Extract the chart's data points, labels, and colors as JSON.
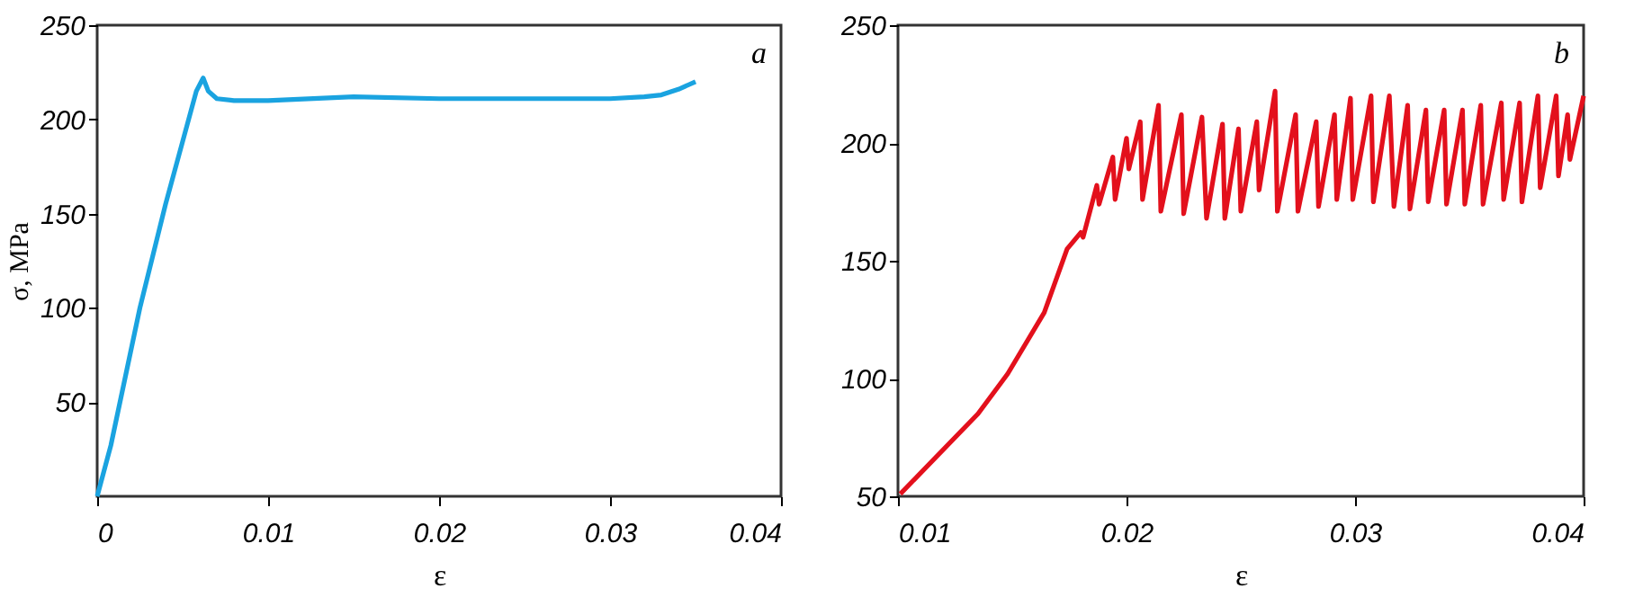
{
  "chart_data": [
    {
      "type": "line",
      "xlabel": "ε",
      "ylabel": "σ, MPa",
      "annotations": [
        "a"
      ],
      "xlim": [
        0,
        0.04
      ],
      "ylim": [
        0,
        250
      ],
      "xticks": [
        {
          "value": 0,
          "label": "0"
        },
        0.01,
        0.02,
        0.03,
        0.04
      ],
      "yticks": [
        50,
        100,
        150,
        200,
        250
      ],
      "grid": false,
      "legend": false,
      "line_style": "solid",
      "series": [
        {
          "color": "#1aa3e0",
          "x": [
            0,
            0.0008,
            0.0025,
            0.004,
            0.0058,
            0.0062,
            0.0065,
            0.007,
            0.008,
            0.01,
            0.015,
            0.02,
            0.025,
            0.03,
            0.032,
            0.033,
            0.034,
            0.035
          ],
          "values": [
            0,
            27,
            100,
            155,
            215,
            222,
            215,
            211,
            210,
            210,
            212,
            211,
            211,
            211,
            212,
            213,
            216,
            220
          ]
        }
      ]
    },
    {
      "type": "line",
      "xlabel": "ε",
      "annotations": [
        "b"
      ],
      "xlim": [
        0.01,
        0.04
      ],
      "ylim": [
        50,
        250
      ],
      "xticks": [
        0.01,
        0.02,
        0.03,
        0.04
      ],
      "yticks": [
        50,
        100,
        150,
        200,
        250
      ],
      "grid": false,
      "legend": false,
      "line_style": "solid",
      "series": [
        {
          "color": "#e3101c",
          "x": [
            0.0101,
            0.0135,
            0.0148,
            0.0164,
            0.0174,
            0.018,
            0.0181,
            0.0187,
            0.0188,
            0.0194,
            0.0195,
            0.02,
            0.0201,
            0.0206,
            0.0207,
            0.0214,
            0.0215,
            0.0224,
            0.0225,
            0.0233,
            0.0235,
            0.0242,
            0.0243,
            0.0249,
            0.025,
            0.0257,
            0.0258,
            0.0265,
            0.0266,
            0.0274,
            0.0275,
            0.0283,
            0.0284,
            0.0291,
            0.0292,
            0.0298,
            0.0299,
            0.0307,
            0.0308,
            0.0315,
            0.0317,
            0.0323,
            0.0324,
            0.0331,
            0.0332,
            0.0339,
            0.034,
            0.0347,
            0.0348,
            0.0355,
            0.0356,
            0.0364,
            0.0365,
            0.0372,
            0.0373,
            0.038,
            0.0381,
            0.0388,
            0.0389,
            0.0393,
            0.0394,
            0.04
          ],
          "values": [
            51,
            85,
            102,
            128,
            155,
            162,
            160,
            182,
            174,
            194,
            176,
            202,
            189,
            209,
            176,
            216,
            171,
            212,
            170,
            211,
            168,
            208,
            168,
            206,
            171,
            209,
            180,
            222,
            171,
            212,
            171,
            209,
            173,
            212,
            176,
            219,
            176,
            220,
            175,
            220,
            173,
            216,
            172,
            214,
            175,
            214,
            174,
            214,
            174,
            216,
            174,
            217,
            176,
            217,
            175,
            220,
            181,
            220,
            186,
            212,
            193,
            220
          ]
        }
      ]
    }
  ]
}
